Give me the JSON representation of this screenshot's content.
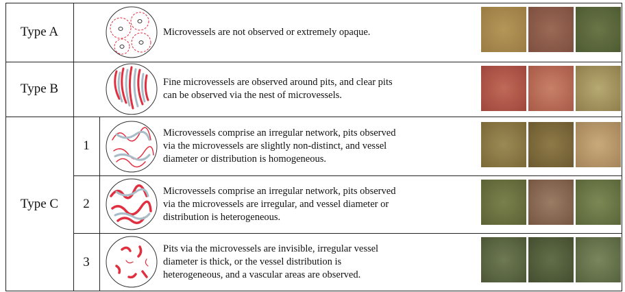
{
  "table": {
    "rows": [
      {
        "type": "Type A",
        "description": [
          "Microvessels are not observed or extremely opaque."
        ]
      },
      {
        "type": "Type B",
        "description": [
          "Fine microvessels are observed around pits, and clear pits",
          "can be observed via the nest of microvessels."
        ]
      },
      {
        "type": "Type C",
        "subtypes": [
          {
            "number": "1",
            "description": [
              "Microvessels comprise an irregular network, pits observed",
              "via the microvessels are slightly non-distinct, and vessel",
              "diameter or distribution is homogeneous."
            ]
          },
          {
            "number": "2",
            "description": [
              "Microvessels comprise an irregular network, pits observed",
              "via the microvessels are irregular, and vessel diameter or",
              "distribution is heterogeneous."
            ]
          },
          {
            "number": "3",
            "description": [
              "Pits via the microvessels are invisible, irregular vessel",
              "diameter is thick, or the vessel distribution is",
              "heterogeneous, and a vascular areas are observed."
            ]
          }
        ]
      }
    ]
  }
}
